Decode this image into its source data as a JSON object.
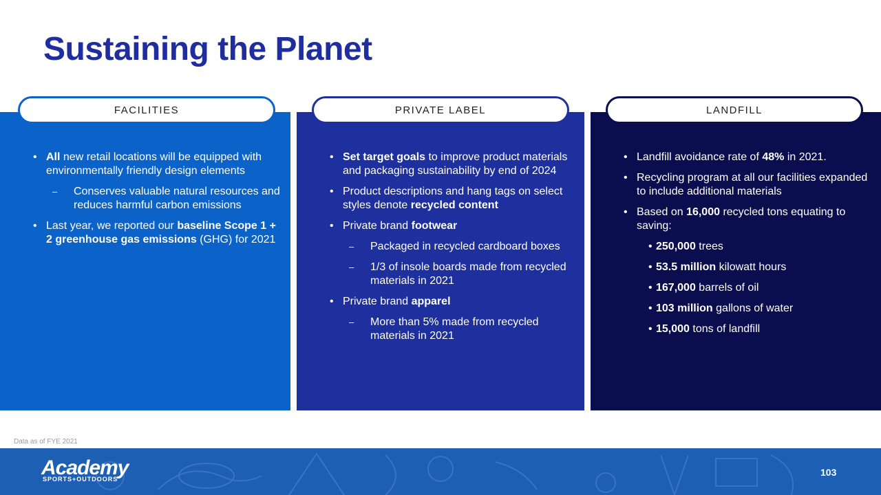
{
  "header": {
    "title": "Sustaining the Planet"
  },
  "panels": [
    {
      "label": "FACILITIES",
      "color": "#0b62c8",
      "bullets": [
        {
          "marker": "bullet",
          "runs": [
            {
              "text": "All",
              "bold": true
            },
            {
              "text": " new retail locations will be equipped with environmentally friendly design elements",
              "bold": false
            }
          ]
        },
        {
          "marker": "dash",
          "runs": [
            {
              "text": "Conserves valuable natural resources and reduces harmful carbon emissions",
              "bold": false
            }
          ]
        },
        {
          "marker": "bullet",
          "runs": [
            {
              "text": "Last year, we reported our ",
              "bold": false
            },
            {
              "text": "baseline Scope 1 + 2 greenhouse gas emissions",
              "bold": true
            },
            {
              "text": " (GHG) for 2021",
              "bold": false
            }
          ]
        }
      ]
    },
    {
      "label": "PRIVATE  LABEL",
      "color": "#1e2f9e",
      "bullets": [
        {
          "marker": "bullet",
          "runs": [
            {
              "text": "Set target goals",
              "bold": true
            },
            {
              "text": " to improve product materials and packaging sustainability by end of 2024",
              "bold": false
            }
          ]
        },
        {
          "marker": "bullet",
          "runs": [
            {
              "text": "Product descriptions and hang tags on select styles denote ",
              "bold": false
            },
            {
              "text": "recycled content",
              "bold": true
            }
          ]
        },
        {
          "marker": "bullet",
          "runs": [
            {
              "text": "Private brand ",
              "bold": false
            },
            {
              "text": "footwear",
              "bold": true
            }
          ]
        },
        {
          "marker": "dash",
          "runs": [
            {
              "text": "Packaged in recycled cardboard boxes",
              "bold": false
            }
          ]
        },
        {
          "marker": "dash",
          "runs": [
            {
              "text": "1/3 of insole boards made from recycled materials in 2021",
              "bold": false
            }
          ]
        },
        {
          "marker": "bullet",
          "runs": [
            {
              "text": "Private brand ",
              "bold": false
            },
            {
              "text": "apparel",
              "bold": true
            }
          ]
        },
        {
          "marker": "dash",
          "runs": [
            {
              "text": "More than 5% made from recycled materials in 2021",
              "bold": false
            }
          ]
        }
      ]
    },
    {
      "label": "LANDFILL",
      "color": "#0a0d4e",
      "bullets": [
        {
          "marker": "bullet",
          "runs": [
            {
              "text": "Landfill avoidance rate of ",
              "bold": false
            },
            {
              "text": "48%",
              "bold": true
            },
            {
              "text": " in 2021.",
              "bold": false
            }
          ]
        },
        {
          "marker": "bullet",
          "runs": [
            {
              "text": "Recycling program at all our facilities expanded to include additional materials",
              "bold": false
            }
          ]
        },
        {
          "marker": "bullet",
          "runs": [
            {
              "text": "Based on ",
              "bold": false
            },
            {
              "text": "16,000",
              "bold": true
            },
            {
              "text": " recycled tons equating to saving:",
              "bold": false
            }
          ]
        },
        {
          "marker": "dot",
          "runs": [
            {
              "text": "250,000",
              "bold": true
            },
            {
              "text": " trees",
              "bold": false
            }
          ]
        },
        {
          "marker": "dot",
          "runs": [
            {
              "text": "53.5 million",
              "bold": true
            },
            {
              "text": " kilowatt hours",
              "bold": false
            }
          ]
        },
        {
          "marker": "dot",
          "runs": [
            {
              "text": "167,000",
              "bold": true
            },
            {
              "text": " barrels of oil",
              "bold": false
            }
          ]
        },
        {
          "marker": "dot",
          "runs": [
            {
              "text": "103 million",
              "bold": true
            },
            {
              "text": " gallons of water",
              "bold": false
            }
          ]
        },
        {
          "marker": "dot",
          "runs": [
            {
              "text": "15,000",
              "bold": true
            },
            {
              "text": " tons of landfill",
              "bold": false
            }
          ]
        }
      ]
    }
  ],
  "footer": {
    "note": "Data as of FYE 2021",
    "logo": "Academy",
    "logo_sub": "SPORTS+OUTDOORS",
    "page": "103"
  }
}
